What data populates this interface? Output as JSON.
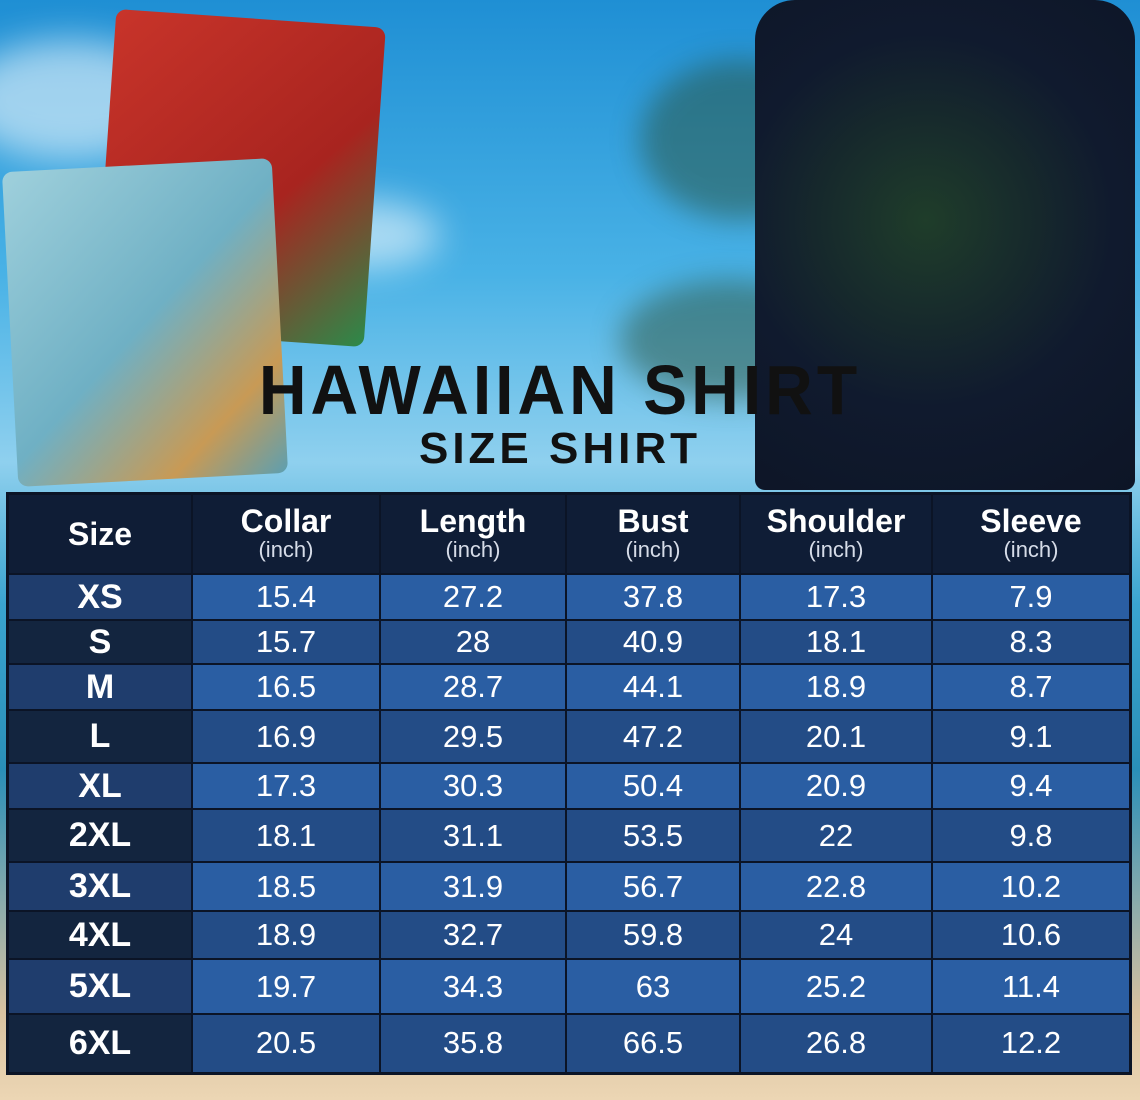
{
  "title": "HAWAIIAN SHIRT",
  "subtitle": "SIZE SHIRT",
  "table": {
    "headers": [
      {
        "label": "Size",
        "unit": ""
      },
      {
        "label": "Collar",
        "unit": "(inch)"
      },
      {
        "label": "Length",
        "unit": "(inch)"
      },
      {
        "label": "Bust",
        "unit": "(inch)"
      },
      {
        "label": "Shoulder",
        "unit": "(inch)"
      },
      {
        "label": "Sleeve",
        "unit": "(inch)"
      }
    ],
    "rows": [
      [
        "XS",
        "15.4",
        "27.2",
        "37.8",
        "17.3",
        "7.9"
      ],
      [
        "S",
        "15.7",
        "28",
        "40.9",
        "18.1",
        "8.3"
      ],
      [
        "M",
        "16.5",
        "28.7",
        "44.1",
        "18.9",
        "8.7"
      ],
      [
        "L",
        "16.9",
        "29.5",
        "47.2",
        "20.1",
        "9.1"
      ],
      [
        "XL",
        "17.3",
        "30.3",
        "50.4",
        "20.9",
        "9.4"
      ],
      [
        "2XL",
        "18.1",
        "31.1",
        "53.5",
        "22",
        "9.8"
      ],
      [
        "3XL",
        "18.5",
        "31.9",
        "56.7",
        "22.8",
        "10.2"
      ],
      [
        "4XL",
        "18.9",
        "32.7",
        "59.8",
        "24",
        "10.6"
      ],
      [
        "5XL",
        "19.7",
        "34.3",
        "63",
        "25.2",
        "11.4"
      ],
      [
        "6XL",
        "20.5",
        "35.8",
        "66.5",
        "26.8",
        "12.2"
      ]
    ]
  },
  "colors": {
    "header": "#0f1d36",
    "row_light": "#2a5ea3",
    "row_dark": "#234c86"
  }
}
